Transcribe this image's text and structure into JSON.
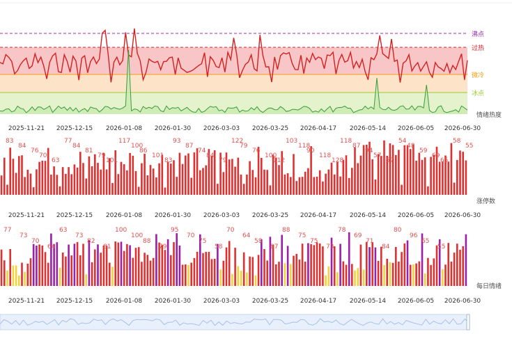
{
  "chart_data": [
    {
      "type": "line",
      "name": "情绪热度",
      "x_ticks": [
        "2025-11-21",
        "2025-12-15",
        "2026-01-08",
        "2026-01-30",
        "2026-03-03",
        "2026-03-25",
        "2026-04-17",
        "2026-05-14",
        "2026-06-05",
        "2026-06-30"
      ],
      "bands": [
        {
          "label": "沸点",
          "color": "#9b2ab5"
        },
        {
          "label": "过热",
          "color": "#e0202a"
        },
        {
          "label": "微冷",
          "color": "#f39c12"
        },
        {
          "label": "冰点",
          "color": "#9acd32"
        }
      ],
      "series_label": "情绪热度",
      "colors": {
        "line": "#d42020",
        "hot_fill": "#f8c6c6",
        "warm_fill": "#fde4c8",
        "cold_fill": "#e4f3cc",
        "green_line": "#3a9a3a"
      }
    },
    {
      "type": "bar",
      "name": "涨停数",
      "series_label": "涨停数",
      "sample_labels": [
        "83",
        "84",
        "76",
        "70",
        "63",
        "77",
        "84",
        "81",
        "79",
        "101",
        "117",
        "100",
        "86",
        "101",
        "83",
        "93",
        "87",
        "74",
        "84",
        "79",
        "122",
        "79",
        "76",
        "100",
        "112",
        "103",
        "118",
        "90",
        "118",
        "128",
        "118",
        "87",
        "94",
        "57",
        "57",
        "54",
        "48",
        "59",
        "69",
        "65",
        "58",
        "55"
      ],
      "colors": {
        "bar": "#e03030",
        "label": "#e05050"
      }
    },
    {
      "type": "bar",
      "name": "每日情绪",
      "series_label": "每日情绪",
      "sample_labels": [
        "77",
        "73",
        "70",
        "64",
        "63",
        "73",
        "82",
        "81",
        "100",
        "100",
        "88",
        "79",
        "95",
        "70",
        "75",
        "58",
        "70",
        "64",
        "58",
        "87",
        "88",
        "75",
        "75",
        "73",
        "78",
        "69",
        "71",
        "84",
        "80",
        "96",
        "65",
        "55"
      ],
      "colors": {
        "red": "#e03030",
        "purple": "#9b1fa8",
        "yellow": "#f3d23a",
        "label": "#e05050"
      }
    }
  ]
}
